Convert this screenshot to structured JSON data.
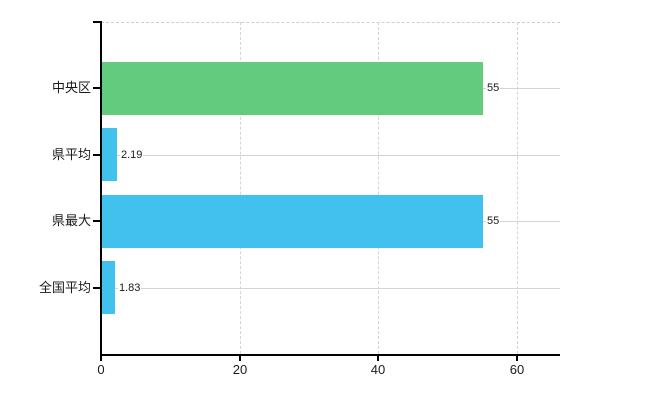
{
  "chart_data": {
    "type": "bar",
    "orientation": "horizontal",
    "title": "",
    "xlabel": "",
    "ylabel": "",
    "categories": [
      "中央区",
      "県平均",
      "県最大",
      "全国平均"
    ],
    "values": [
      55,
      2.19,
      55,
      1.83
    ],
    "value_labels": [
      "55",
      "2.19",
      "55",
      "1.83"
    ],
    "bar_colors": [
      "#63cb7e",
      "#40c1ee",
      "#40c1ee",
      "#40c1ee"
    ],
    "xticks": [
      0,
      20,
      40,
      60
    ],
    "xtick_labels": [
      "0",
      "20",
      "40",
      "60"
    ],
    "xlim": [
      0,
      66.2
    ],
    "grid": true,
    "legend": false,
    "colors": {
      "bar_green": "#63cb7e",
      "bar_blue": "#40c1ee",
      "gridline": "#d4d4d4",
      "axis": "#000000",
      "text": "#1a1a1a",
      "background": "#ffffff"
    }
  }
}
